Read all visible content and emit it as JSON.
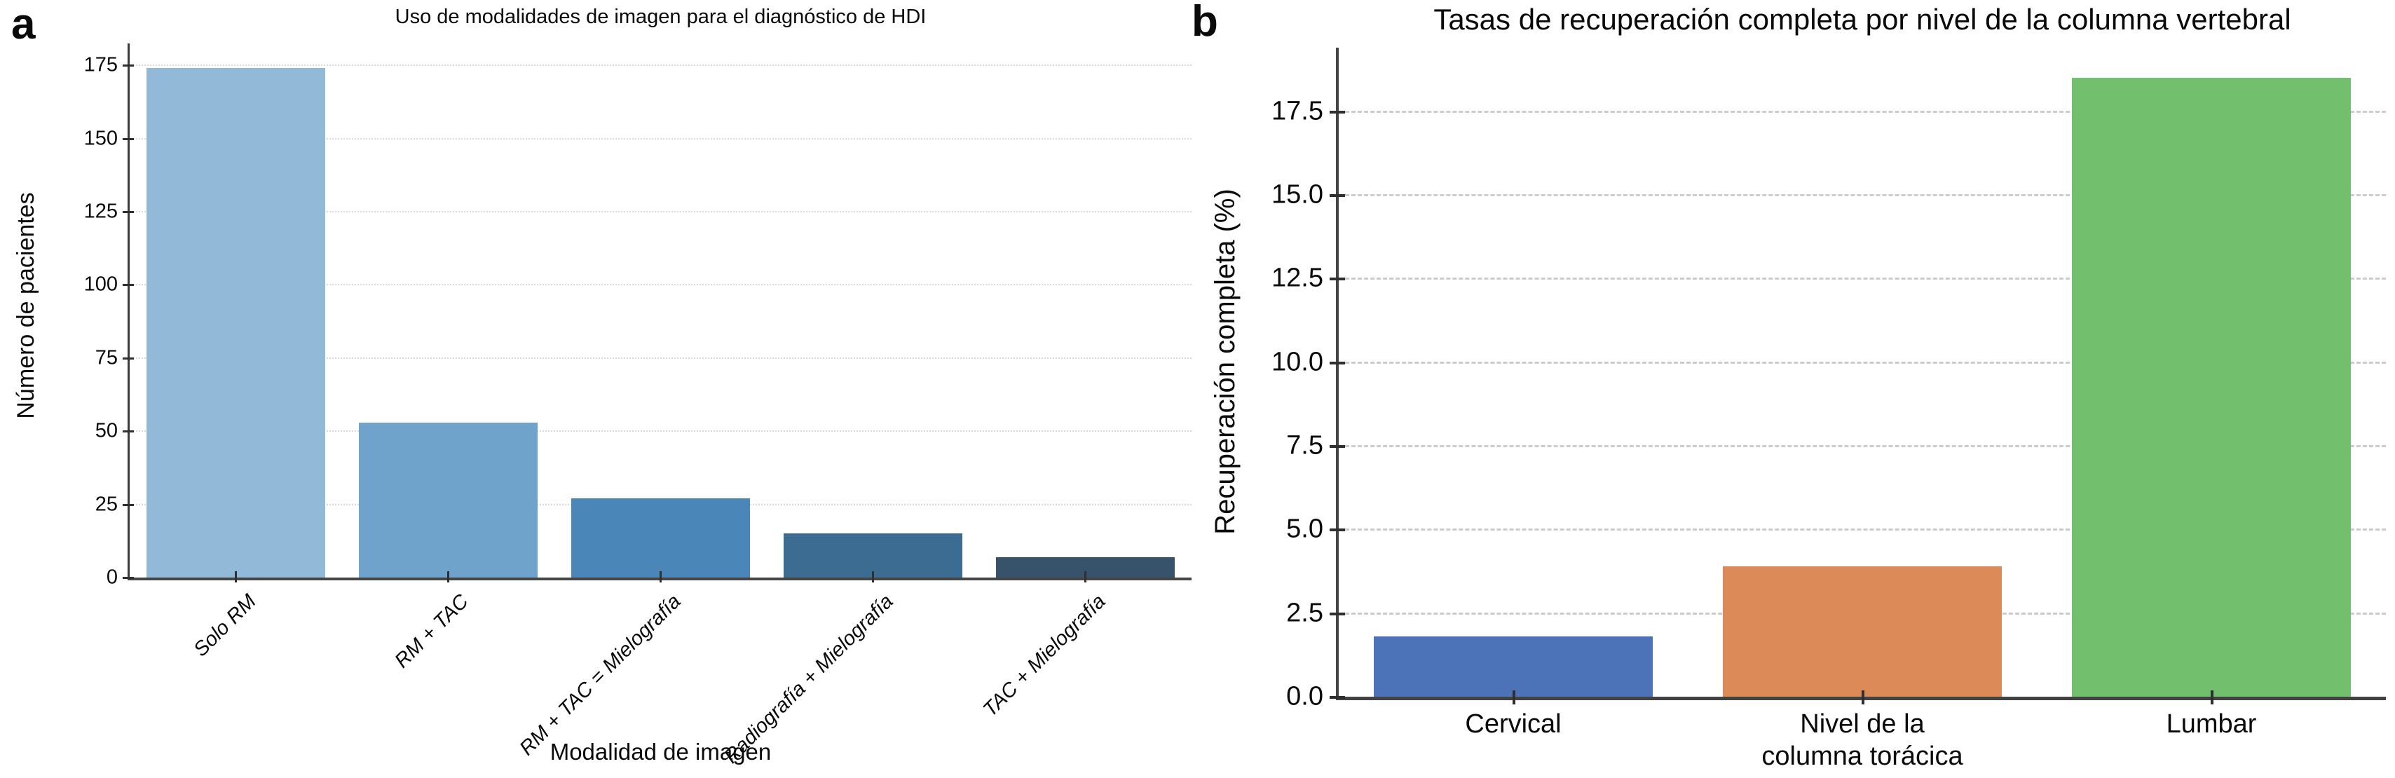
{
  "figure_background": "#ffffff",
  "text_color": "#0a0a0a",
  "chart_data": [
    {
      "type": "bar",
      "panel_label": "a",
      "title": "Uso de modalidades de imagen para el diagnóstico de HDI",
      "xlabel": "Modalidad de imagen",
      "ylabel": "Número de pacientes",
      "categories": [
        "Solo RM",
        "RM + TAC",
        "RM + TAC = Mielografía",
        "Radiografía + Mielografía",
        "TAC + Mielografía"
      ],
      "values": [
        174,
        53,
        27,
        15,
        7
      ],
      "bar_colors": [
        "#93b9d8",
        "#6fa3cb",
        "#4a86b8",
        "#3d6c93",
        "#37536b"
      ],
      "ytick_values": [
        0,
        25,
        50,
        75,
        100,
        125,
        150,
        175
      ],
      "ytick_labels": [
        "0",
        "25",
        "50",
        "75",
        "100",
        "125",
        "150",
        "175"
      ],
      "ylim": [
        0,
        182.5
      ],
      "grid": "dotted",
      "legend": null,
      "bar_width_fraction": 0.84,
      "x_labels_rotated_italic": true
    },
    {
      "type": "bar",
      "panel_label": "b",
      "title": "Tasas de recuperación completa por nivel de la columna vertebral",
      "xlabel": "",
      "ylabel": "Recuperación completa (%)",
      "categories": [
        "Cervical",
        "Nivel de la\ncolumna torácica",
        "Lumbar"
      ],
      "values": [
        1.8,
        3.9,
        18.5
      ],
      "bar_colors": [
        "#4c72b8",
        "#dc8a57",
        "#72bf6e"
      ],
      "ytick_values": [
        0,
        2.5,
        5,
        7.5,
        10,
        12.5,
        15,
        17.5
      ],
      "ytick_labels": [
        "0.0",
        "2.5",
        "5.0",
        "7.5",
        "10.0",
        "12.5",
        "15.0",
        "17.5"
      ],
      "ylim": [
        0,
        19.4
      ],
      "grid": "dashed",
      "legend": null,
      "bar_width_fraction": 0.8,
      "x_labels_rotated_italic": false
    }
  ]
}
